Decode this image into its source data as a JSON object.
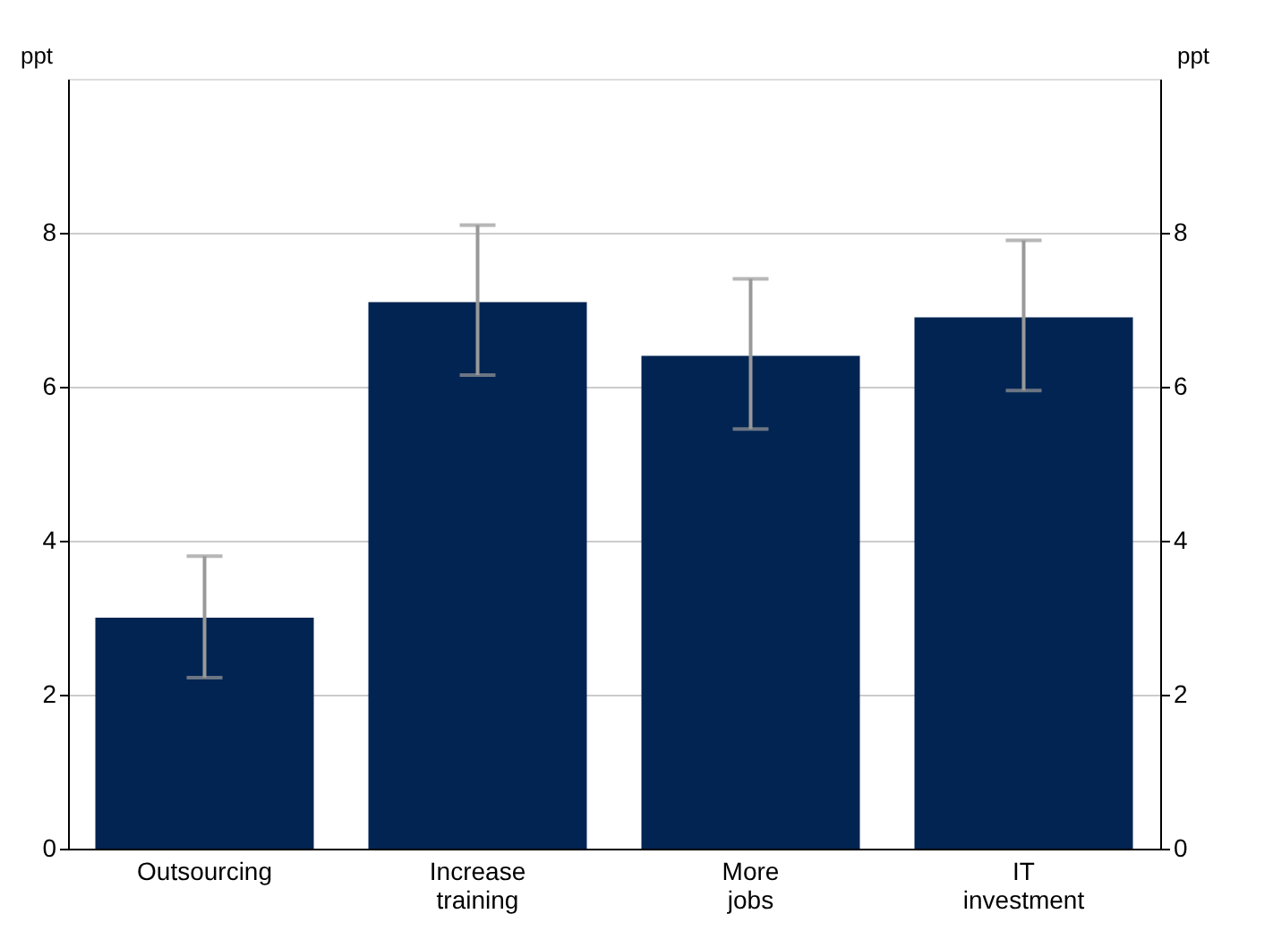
{
  "chart_data": {
    "type": "bar",
    "categories": [
      "Outsourcing",
      "Increase training",
      "More jobs",
      "IT investment"
    ],
    "values": [
      3.0,
      7.1,
      6.4,
      6.9
    ],
    "errors": [
      [
        2.22,
        3.8
      ],
      [
        6.15,
        8.1
      ],
      [
        5.45,
        7.4
      ],
      [
        5.95,
        7.9
      ]
    ],
    "color": "#012452",
    "ylabel": "ppt",
    "y2label": "ppt",
    "ylim": [
      0,
      10
    ],
    "yticks": [
      0,
      2,
      4,
      6,
      8
    ],
    "y2lim": [
      0,
      10
    ],
    "y2ticks": [
      0,
      2,
      4,
      6,
      8
    ],
    "grid": "y"
  }
}
